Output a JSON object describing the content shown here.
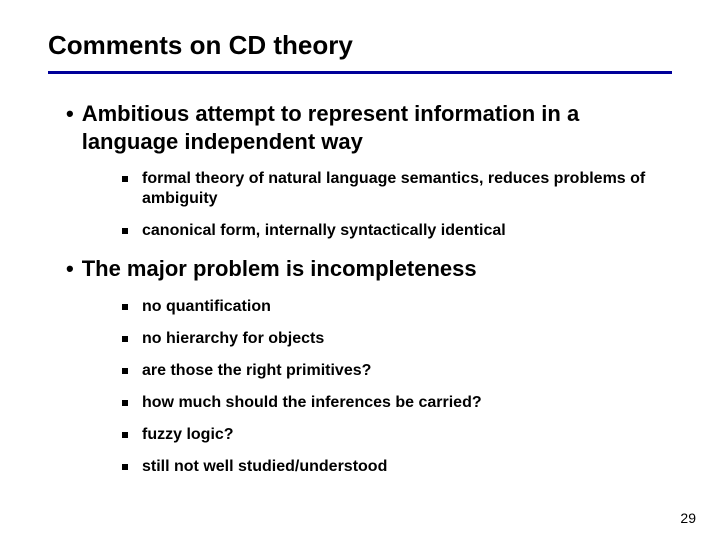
{
  "slide": {
    "title": "Comments on CD theory",
    "underline_color": "#000099",
    "title_fontsize": 26,
    "main_bullet_fontsize": 22,
    "sub_bullet_fontsize": 16,
    "text_color": "#000000",
    "background_color": "#ffffff",
    "page_number": "29",
    "sections": [
      {
        "main": "Ambitious attempt to represent information in a language independent way",
        "subs": [
          "formal theory of natural language semantics, reduces problems of ambiguity",
          "canonical form, internally syntactically identical"
        ]
      },
      {
        "main": "The major problem is incompleteness",
        "subs": [
          "no quantification",
          "no hierarchy for objects",
          "are those  the right primitives?",
          "how much should the inferences be carried?",
          "fuzzy logic?",
          "still not well studied/understood"
        ]
      }
    ]
  }
}
